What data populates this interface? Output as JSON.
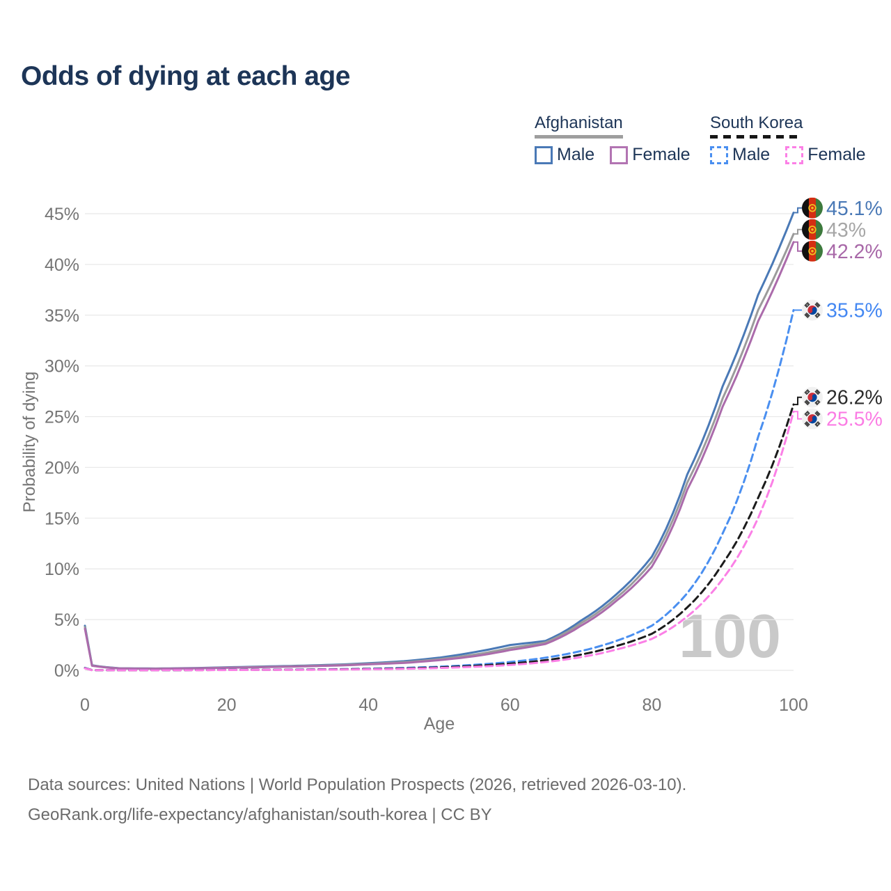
{
  "title": "Odds of dying at each age",
  "legend": {
    "groups": [
      {
        "country": "Afghanistan",
        "line_style": "solid",
        "underline_color": "#9e9e9e",
        "items": [
          {
            "label": "Male",
            "color": "#4a79b6",
            "dashed": false
          },
          {
            "label": "Female",
            "color": "#b274b2",
            "dashed": false
          }
        ]
      },
      {
        "country": "South Korea",
        "line_style": "dashed",
        "underline_color": "#161616",
        "items": [
          {
            "label": "Male",
            "color": "#4a8ff0",
            "dashed": true
          },
          {
            "label": "Female",
            "color": "#fb80e6",
            "dashed": true
          }
        ]
      }
    ]
  },
  "chart_data": {
    "type": "line",
    "title": "Odds of dying at each age",
    "xlabel": "Age",
    "ylabel": "Probability of dying",
    "xlim": [
      0,
      100
    ],
    "ylim": [
      0,
      46
    ],
    "grid": "horizontal-only",
    "gridline_color": "#e8e8e8",
    "watermark": "100",
    "x_axis": {
      "label": "Age",
      "tick_values": [
        0,
        20,
        40,
        60,
        80,
        100
      ],
      "tick_labels": [
        "0",
        "20",
        "40",
        "60",
        "80",
        "100"
      ]
    },
    "y_axis": {
      "label": "Probability of dying",
      "tick_values": [
        0,
        5,
        10,
        15,
        20,
        25,
        30,
        35,
        40,
        45
      ],
      "tick_labels": [
        "0%",
        "5%",
        "10%",
        "15%",
        "20%",
        "25%",
        "30%",
        "35%",
        "40%",
        "45%"
      ]
    },
    "ages": [
      0,
      1,
      5,
      10,
      15,
      20,
      25,
      30,
      35,
      40,
      45,
      50,
      55,
      60,
      65,
      70,
      75,
      80,
      85,
      90,
      95,
      100
    ],
    "unit": "percent",
    "series": [
      {
        "name": "Afghanistan Male",
        "country": "Afghanistan",
        "sex": "Male",
        "color": "#4a79b6",
        "dashed": false,
        "flag": "afghanistan",
        "end_label": "45.1%",
        "label_color": "#4a79b6",
        "values": [
          4.4,
          0.5,
          0.2,
          0.18,
          0.22,
          0.3,
          0.38,
          0.45,
          0.55,
          0.7,
          0.9,
          1.25,
          1.8,
          2.5,
          2.9,
          4.9,
          7.5,
          11.2,
          19.3,
          28.0,
          37.0,
          45.1
        ]
      },
      {
        "name": "Afghanistan Both sexes",
        "country": "Afghanistan",
        "sex": "Both",
        "color": "#9b9b9b",
        "dashed": false,
        "flag": "afghanistan",
        "end_label": "43%",
        "label_color": "#a6a6a6",
        "values": [
          4.25,
          0.47,
          0.19,
          0.17,
          0.2,
          0.27,
          0.34,
          0.41,
          0.5,
          0.64,
          0.8,
          1.1,
          1.55,
          2.2,
          2.75,
          4.65,
          7.15,
          10.7,
          18.5,
          26.8,
          35.5,
          43.0
        ]
      },
      {
        "name": "Afghanistan Female",
        "country": "Afghanistan",
        "sex": "Female",
        "color": "#ab6bab",
        "dashed": false,
        "flag": "afghanistan",
        "end_label": "42.2%",
        "label_color": "#a868a8",
        "values": [
          4.1,
          0.45,
          0.18,
          0.16,
          0.19,
          0.25,
          0.31,
          0.38,
          0.46,
          0.59,
          0.73,
          1.0,
          1.4,
          2.0,
          2.6,
          4.4,
          6.85,
          10.2,
          17.8,
          26.0,
          34.4,
          42.2
        ]
      },
      {
        "name": "South Korea Male",
        "country": "South Korea",
        "sex": "Male",
        "color": "#4a8ff0",
        "dashed": true,
        "flag": "south-korea",
        "end_label": "35.5%",
        "label_color": "#4387f2",
        "values": [
          0.25,
          0.02,
          0.01,
          0.012,
          0.03,
          0.05,
          0.06,
          0.08,
          0.11,
          0.16,
          0.24,
          0.36,
          0.55,
          0.82,
          1.25,
          1.9,
          2.9,
          4.4,
          7.6,
          13.5,
          23.0,
          35.5
        ]
      },
      {
        "name": "South Korea Both sexes",
        "country": "South Korea",
        "sex": "Both",
        "color": "#1b1b1b",
        "dashed": true,
        "flag": "south-korea",
        "end_label": "26.2%",
        "label_color": "#2b2b2b",
        "values": [
          0.22,
          0.018,
          0.009,
          0.011,
          0.025,
          0.04,
          0.05,
          0.065,
          0.09,
          0.13,
          0.19,
          0.29,
          0.44,
          0.66,
          1.0,
          1.55,
          2.4,
          3.6,
          6.2,
          10.5,
          17.0,
          26.2
        ]
      },
      {
        "name": "South Korea Female",
        "country": "South Korea",
        "sex": "Female",
        "color": "#fb80e6",
        "dashed": true,
        "flag": "south-korea",
        "end_label": "25.5%",
        "label_color": "#fb7ce4",
        "values": [
          0.2,
          0.016,
          0.008,
          0.01,
          0.02,
          0.03,
          0.04,
          0.05,
          0.07,
          0.1,
          0.15,
          0.23,
          0.35,
          0.53,
          0.82,
          1.3,
          2.05,
          3.1,
          5.3,
          9.0,
          15.0,
          25.5
        ]
      }
    ]
  },
  "footer": {
    "line1": "Data sources: United Nations | World Population Prospects (2026, retrieved 2026-03-10).",
    "line2": "GeoRank.org/life-expectancy/afghanistan/south-korea | CC BY"
  }
}
